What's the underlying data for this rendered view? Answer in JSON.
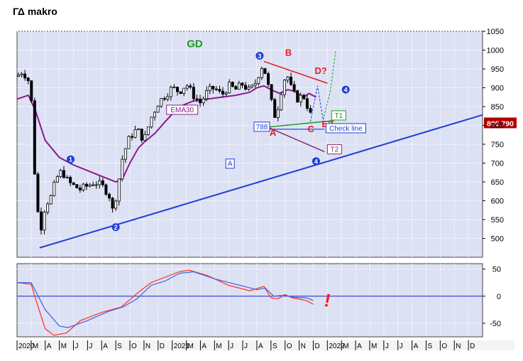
{
  "title": "ΓΔ makro",
  "colors": {
    "plot_bg": "#dde1f4",
    "grid": "#ffffff",
    "trend_blue": "#1f3fd6",
    "ema": "#8a1a8a",
    "resistance_red": "#e0201c",
    "support_green": "#1aa020",
    "macd_red": "#ff3a2a",
    "macd_blue": "#4a6ae0",
    "price_box_bg": "#b00000"
  },
  "chart_data": [
    {
      "type": "candlestick",
      "ylim": [
        450,
        1050
      ],
      "yticks": [
        "1050",
        "1000",
        "950",
        "900",
        "850",
        "800",
        "750",
        "700",
        "650",
        "600",
        "550",
        "500"
      ],
      "x_axis_labels": [
        "2020",
        "M",
        "A",
        "M",
        "J",
        "J",
        "A",
        "S",
        "O",
        "N",
        "D",
        "2021",
        "M",
        "A",
        "M",
        "J",
        "J",
        "A",
        "S",
        "O",
        "N",
        "D",
        "2022",
        "M",
        "A",
        "M",
        "J",
        "J",
        "A",
        "S",
        "O",
        "N",
        "D"
      ],
      "grid": true,
      "close_series": [
        {
          "x": 0.0,
          "y": 930
        },
        {
          "x": 0.4,
          "y": 945
        },
        {
          "x": 0.8,
          "y": 920
        },
        {
          "x": 1.0,
          "y": 880
        },
        {
          "x": 1.2,
          "y": 700
        },
        {
          "x": 1.5,
          "y": 560
        },
        {
          "x": 1.7,
          "y": 530
        },
        {
          "x": 2.0,
          "y": 590
        },
        {
          "x": 2.4,
          "y": 610
        },
        {
          "x": 2.8,
          "y": 660
        },
        {
          "x": 3.2,
          "y": 680
        },
        {
          "x": 3.6,
          "y": 650
        },
        {
          "x": 4.0,
          "y": 640
        },
        {
          "x": 4.5,
          "y": 630
        },
        {
          "x": 5.0,
          "y": 640
        },
        {
          "x": 5.5,
          "y": 650
        },
        {
          "x": 6.0,
          "y": 640
        },
        {
          "x": 6.5,
          "y": 620
        },
        {
          "x": 6.8,
          "y": 570
        },
        {
          "x": 7.1,
          "y": 630
        },
        {
          "x": 7.5,
          "y": 720
        },
        {
          "x": 8.0,
          "y": 770
        },
        {
          "x": 8.5,
          "y": 790
        },
        {
          "x": 9.0,
          "y": 760
        },
        {
          "x": 9.5,
          "y": 820
        },
        {
          "x": 10.0,
          "y": 860
        },
        {
          "x": 10.5,
          "y": 880
        },
        {
          "x": 11.0,
          "y": 900
        },
        {
          "x": 11.5,
          "y": 890
        },
        {
          "x": 12.0,
          "y": 910
        },
        {
          "x": 12.5,
          "y": 880
        },
        {
          "x": 13.0,
          "y": 860
        },
        {
          "x": 13.5,
          "y": 890
        },
        {
          "x": 14.0,
          "y": 900
        },
        {
          "x": 14.5,
          "y": 880
        },
        {
          "x": 15.0,
          "y": 905
        },
        {
          "x": 15.5,
          "y": 895
        },
        {
          "x": 16.0,
          "y": 910
        },
        {
          "x": 16.5,
          "y": 890
        },
        {
          "x": 17.0,
          "y": 920
        },
        {
          "x": 17.3,
          "y": 960
        },
        {
          "x": 17.6,
          "y": 940
        },
        {
          "x": 18.0,
          "y": 870
        },
        {
          "x": 18.2,
          "y": 820
        },
        {
          "x": 18.5,
          "y": 850
        },
        {
          "x": 18.8,
          "y": 905
        },
        {
          "x": 19.1,
          "y": 940
        },
        {
          "x": 19.5,
          "y": 890
        },
        {
          "x": 19.9,
          "y": 870
        },
        {
          "x": 20.3,
          "y": 880
        },
        {
          "x": 20.7,
          "y": 840
        },
        {
          "x": 21.0,
          "y": 805
        }
      ],
      "ema30": {
        "label": "EMA30",
        "points": [
          {
            "x": 0.0,
            "y": 870
          },
          {
            "x": 0.8,
            "y": 880
          },
          {
            "x": 1.3,
            "y": 840
          },
          {
            "x": 2.0,
            "y": 760
          },
          {
            "x": 3.0,
            "y": 715
          },
          {
            "x": 4.0,
            "y": 695
          },
          {
            "x": 5.0,
            "y": 680
          },
          {
            "x": 6.0,
            "y": 665
          },
          {
            "x": 7.0,
            "y": 650
          },
          {
            "x": 7.5,
            "y": 660
          },
          {
            "x": 8.0,
            "y": 700
          },
          {
            "x": 8.6,
            "y": 740
          },
          {
            "x": 9.0,
            "y": 755
          },
          {
            "x": 9.8,
            "y": 780
          },
          {
            "x": 10.5,
            "y": 810
          },
          {
            "x": 11.5,
            "y": 850
          },
          {
            "x": 12.5,
            "y": 865
          },
          {
            "x": 13.5,
            "y": 870
          },
          {
            "x": 14.5,
            "y": 875
          },
          {
            "x": 15.5,
            "y": 880
          },
          {
            "x": 16.5,
            "y": 888
          },
          {
            "x": 17.0,
            "y": 900
          },
          {
            "x": 17.5,
            "y": 905
          },
          {
            "x": 18.0,
            "y": 895
          },
          {
            "x": 18.6,
            "y": 885
          },
          {
            "x": 19.2,
            "y": 895
          },
          {
            "x": 19.7,
            "y": 890
          },
          {
            "x": 20.3,
            "y": 875
          },
          {
            "x": 20.7,
            "y": 885
          },
          {
            "x": 21.2,
            "y": 875
          }
        ]
      },
      "last_price": "805.790",
      "annotations": {
        "GD": "GD",
        "wave_1": "1",
        "wave_2": "2",
        "wave_3": "3",
        "wave_4_upper": "4",
        "wave_4_lower": "4",
        "A": "A",
        "B": "B",
        "C": "C",
        "D": "D?",
        "E": "E?",
        "level_788": "788",
        "line_A": "A",
        "line_T1": "T1",
        "line_T2": "T2",
        "check_line": "Check line"
      }
    },
    {
      "type": "line",
      "ylim": [
        -75,
        60
      ],
      "yticks": [
        "50",
        "0",
        "-50"
      ],
      "series_red": [
        {
          "x": 0,
          "y": 25
        },
        {
          "x": 1.0,
          "y": 22
        },
        {
          "x": 1.5,
          "y": -20
        },
        {
          "x": 2.0,
          "y": -60
        },
        {
          "x": 2.6,
          "y": -72
        },
        {
          "x": 3.5,
          "y": -68
        },
        {
          "x": 4.5,
          "y": -45
        },
        {
          "x": 6.0,
          "y": -30
        },
        {
          "x": 7.4,
          "y": -20
        },
        {
          "x": 8.5,
          "y": 5
        },
        {
          "x": 9.5,
          "y": 25
        },
        {
          "x": 10.5,
          "y": 35
        },
        {
          "x": 11.5,
          "y": 45
        },
        {
          "x": 12.2,
          "y": 48
        },
        {
          "x": 13.5,
          "y": 38
        },
        {
          "x": 15.0,
          "y": 20
        },
        {
          "x": 16.5,
          "y": 10
        },
        {
          "x": 17.5,
          "y": 18
        },
        {
          "x": 18.0,
          "y": -3
        },
        {
          "x": 18.5,
          "y": -5
        },
        {
          "x": 19.0,
          "y": 3
        },
        {
          "x": 19.5,
          "y": -3
        },
        {
          "x": 20.5,
          "y": -8
        },
        {
          "x": 21.0,
          "y": -15
        }
      ],
      "series_blue": [
        {
          "x": 0,
          "y": 25
        },
        {
          "x": 1.0,
          "y": 25
        },
        {
          "x": 2.0,
          "y": -25
        },
        {
          "x": 3.0,
          "y": -55
        },
        {
          "x": 3.6,
          "y": -58
        },
        {
          "x": 5.0,
          "y": -45
        },
        {
          "x": 6.5,
          "y": -28
        },
        {
          "x": 7.5,
          "y": -20
        },
        {
          "x": 8.5,
          "y": -5
        },
        {
          "x": 9.5,
          "y": 20
        },
        {
          "x": 10.5,
          "y": 28
        },
        {
          "x": 11.5,
          "y": 42
        },
        {
          "x": 12.5,
          "y": 45
        },
        {
          "x": 14.0,
          "y": 32
        },
        {
          "x": 15.5,
          "y": 22
        },
        {
          "x": 17.0,
          "y": 12
        },
        {
          "x": 17.6,
          "y": 15
        },
        {
          "x": 18.2,
          "y": 0
        },
        {
          "x": 19.0,
          "y": 2
        },
        {
          "x": 19.6,
          "y": -2
        },
        {
          "x": 20.5,
          "y": -3
        },
        {
          "x": 21.0,
          "y": -8
        }
      ],
      "marker": "!"
    }
  ]
}
